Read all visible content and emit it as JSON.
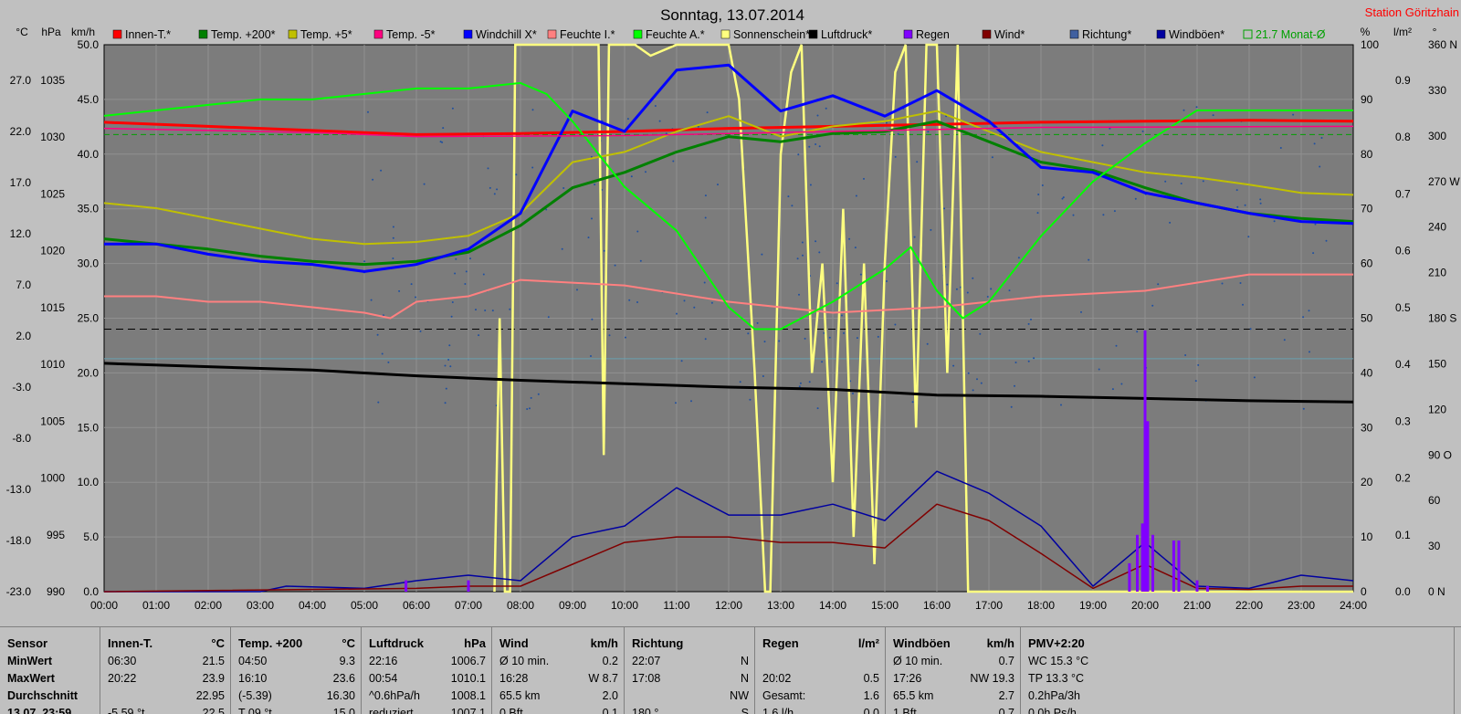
{
  "title": "Sonntag, 13.07.2014",
  "station": "Station Göritzhain",
  "axis_units": {
    "celsius": "°C",
    "hpa": "hPa",
    "kmh": "km/h",
    "percent": "%",
    "lm2": "l/m²",
    "degree": "°"
  },
  "legend": [
    {
      "label": "Innen-T.*",
      "color": "#ff0000"
    },
    {
      "label": "Temp. +200*",
      "color": "#008000"
    },
    {
      "label": "Temp. +5*",
      "color": "#c0c000"
    },
    {
      "label": "Temp. -5*",
      "color": "#ff0080"
    },
    {
      "label": "Windchill X*",
      "color": "#0000ff"
    },
    {
      "label": "Feuchte I.*",
      "color": "#ff8080"
    },
    {
      "label": "Feuchte A.*",
      "color": "#00ff00"
    },
    {
      "label": "Sonnenschein*",
      "color": "#ffff80"
    },
    {
      "label": "Luftdruck*",
      "color": "#000000"
    },
    {
      "label": "Regen",
      "color": "#8000ff"
    },
    {
      "label": "Wind*",
      "color": "#800000"
    },
    {
      "label": "Richtung*",
      "color": "#4060a0"
    },
    {
      "label": "Windböen*",
      "color": "#0000a0"
    },
    {
      "label": "21.7 Monat-Ø",
      "color": "#00a000"
    }
  ],
  "chart_data": {
    "type": "line",
    "x_ticks": [
      "00:00",
      "01:00",
      "02:00",
      "03:00",
      "04:00",
      "05:00",
      "06:00",
      "07:00",
      "08:00",
      "09:00",
      "10:00",
      "11:00",
      "12:00",
      "13:00",
      "14:00",
      "15:00",
      "16:00",
      "17:00",
      "18:00",
      "19:00",
      "20:00",
      "21:00",
      "22:00",
      "23:00",
      "24:00"
    ],
    "axis_celsius": [
      "27.0",
      "22.0",
      "17.0",
      "12.0",
      "7.0",
      "2.0",
      "-3.0",
      "-8.0",
      "-13.0",
      "-18.0",
      "-23.0"
    ],
    "axis_hpa": [
      "1035",
      "1030",
      "1025",
      "1020",
      "1015",
      "1010",
      "1005",
      "1000",
      "995",
      "990"
    ],
    "axis_kmh": [
      "50.0",
      "45.0",
      "40.0",
      "35.0",
      "30.0",
      "25.0",
      "20.0",
      "15.0",
      "10.0",
      "5.0",
      "0.0"
    ],
    "axis_percent": [
      "100",
      "90",
      "80",
      "70",
      "60",
      "50",
      "40",
      "30",
      "20",
      "10",
      "0"
    ],
    "axis_lm2": [
      "0.9",
      "0.8",
      "0.7",
      "0.6",
      "0.5",
      "0.4",
      "0.3",
      "0.2",
      "0.1",
      "0.0"
    ],
    "axis_degree": [
      "360 N",
      "330",
      "300",
      "270 W",
      "240",
      "210",
      "180 S",
      "150",
      "120",
      "90 O",
      "60",
      "30",
      "0 N"
    ],
    "grid": true,
    "series": [
      {
        "name": "Innen-T.*",
        "axis": "celsius",
        "x": [
          0,
          2,
          4,
          6,
          8,
          10,
          12,
          14,
          16,
          18,
          20,
          22,
          24
        ],
        "values": [
          22.9,
          22.5,
          22.1,
          21.7,
          21.8,
          22.0,
          22.3,
          22.5,
          22.7,
          22.9,
          23.0,
          23.1,
          23.0
        ]
      },
      {
        "name": "Temp. +200*",
        "axis": "celsius",
        "x": [
          0,
          1,
          2,
          3,
          4,
          5,
          6,
          7,
          8,
          9,
          10,
          11,
          12,
          13,
          14,
          15,
          16,
          17,
          18,
          19,
          20,
          21,
          22,
          23,
          24
        ],
        "values": [
          11.5,
          11.0,
          10.5,
          9.8,
          9.3,
          9.0,
          9.3,
          10.2,
          12.8,
          16.5,
          18.0,
          20.0,
          21.5,
          21.0,
          21.8,
          22.0,
          23.0,
          21.0,
          19.0,
          18.2,
          16.5,
          15.0,
          14.0,
          13.5,
          13.2
        ]
      },
      {
        "name": "Temp. +5*",
        "axis": "celsius",
        "x": [
          0,
          1,
          2,
          3,
          4,
          5,
          6,
          7,
          8,
          9,
          10,
          11,
          12,
          13,
          14,
          15,
          16,
          17,
          18,
          19,
          20,
          21,
          22,
          23,
          24
        ],
        "values": [
          15.0,
          14.5,
          13.5,
          12.5,
          11.5,
          11.0,
          11.2,
          11.8,
          14.0,
          19.0,
          20.0,
          22.0,
          23.5,
          21.5,
          22.5,
          23.0,
          24.0,
          22.0,
          20.0,
          19.0,
          18.0,
          17.5,
          16.8,
          16.0,
          15.8
        ]
      },
      {
        "name": "Windchill X*",
        "axis": "celsius",
        "x": [
          0,
          1,
          2,
          3,
          4,
          5,
          6,
          7,
          8,
          9,
          10,
          11,
          12,
          13,
          14,
          15,
          16,
          17,
          18,
          19,
          20,
          21,
          22,
          23,
          24
        ],
        "values": [
          11.0,
          11.0,
          10.0,
          9.3,
          9.0,
          8.3,
          9.0,
          10.5,
          14.0,
          24.0,
          22.0,
          28.0,
          28.5,
          24.0,
          25.5,
          23.5,
          26.0,
          23.0,
          18.5,
          18.0,
          16.0,
          15.0,
          14.0,
          13.2,
          13.0
        ]
      },
      {
        "name": "Luftdruck*",
        "axis": "hpa",
        "x": [
          0,
          2,
          4,
          6,
          8,
          10,
          12,
          14,
          16,
          18,
          20,
          22,
          24
        ],
        "values": [
          1010.1,
          1009.8,
          1009.5,
          1009.0,
          1008.6,
          1008.3,
          1008.0,
          1007.8,
          1007.3,
          1007.2,
          1007.0,
          1006.8,
          1006.7
        ]
      },
      {
        "name": "Feuchte I.*",
        "axis": "percent",
        "x": [
          0,
          1,
          2,
          3,
          4,
          5,
          5.5,
          6,
          7,
          8,
          10,
          12,
          14,
          16,
          18,
          20,
          22,
          24
        ],
        "values": [
          54,
          54,
          53,
          53,
          52,
          51,
          50,
          53,
          54,
          57,
          56,
          53,
          51,
          52,
          54,
          55,
          58,
          58
        ]
      },
      {
        "name": "Feuchte A.*",
        "axis": "percent",
        "x": [
          0,
          1,
          2,
          3,
          4,
          5,
          6,
          7,
          8,
          8.5,
          9,
          10,
          11,
          12,
          12.5,
          13,
          14,
          15,
          15.5,
          16,
          16.5,
          17,
          18,
          19,
          20,
          21,
          22,
          23,
          24
        ],
        "values": [
          87,
          88,
          89,
          90,
          90,
          91,
          92,
          92,
          93,
          91,
          86,
          74,
          66,
          52,
          48,
          48,
          53,
          59,
          63,
          55,
          50,
          53,
          65,
          75,
          82,
          88,
          88,
          88,
          88
        ]
      },
      {
        "name": "Windböen*",
        "axis": "kmh",
        "x": [
          0,
          3,
          3.5,
          5,
          6,
          7,
          8,
          9,
          10,
          11,
          12,
          13,
          14,
          15,
          16,
          17,
          18,
          19,
          20,
          21,
          22,
          23,
          24
        ],
        "values": [
          0,
          0,
          0.5,
          0.3,
          1.0,
          1.5,
          1.0,
          5.0,
          6.0,
          9.5,
          7.0,
          7.0,
          8.0,
          6.5,
          11.0,
          9.0,
          6.0,
          0.5,
          4.5,
          0.5,
          0.3,
          1.5,
          1.0
        ]
      },
      {
        "name": "Wind*",
        "axis": "kmh",
        "x": [
          0,
          6,
          7,
          8,
          9,
          10,
          11,
          12,
          13,
          14,
          15,
          16,
          17,
          18,
          19,
          20,
          21,
          22,
          23,
          24
        ],
        "values": [
          0,
          0.3,
          0.5,
          0.5,
          2.5,
          4.5,
          5.0,
          5.0,
          4.5,
          4.5,
          4.0,
          8.0,
          6.5,
          3.5,
          0.3,
          2.5,
          0.3,
          0.2,
          0.5,
          0.5
        ]
      }
    ],
    "monthly_avg_celsius": 21.7
  },
  "panel": {
    "columns": [
      {
        "title": "Sensor",
        "unit": "",
        "rows": [
          [
            "MinWert",
            ""
          ],
          [
            "MaxWert",
            ""
          ],
          [
            "Durchschnitt",
            ""
          ],
          [
            "13.07. 23:59",
            ""
          ]
        ]
      },
      {
        "title": "Innen-T.",
        "unit": "°C",
        "rows": [
          [
            "06:30",
            "21.5"
          ],
          [
            "20:22",
            "23.9"
          ],
          [
            "",
            "22.95"
          ],
          [
            "-5.59 °t",
            "22.5"
          ]
        ]
      },
      {
        "title": "Temp. +200",
        "unit": "°C",
        "rows": [
          [
            "04:50",
            "9.3"
          ],
          [
            "16:10",
            "23.6"
          ],
          [
            "(-5.39)",
            "16.30"
          ],
          [
            "T 09 °t",
            "15.0"
          ]
        ]
      },
      {
        "title": "Luftdruck",
        "unit": "hPa",
        "rows": [
          [
            "22:16",
            "1006.7"
          ],
          [
            "00:54",
            "1010.1"
          ],
          [
            "^0.6hPa/h",
            "1008.1"
          ],
          [
            "reduziert",
            "1007.1"
          ]
        ]
      },
      {
        "title": "Wind",
        "unit": "km/h",
        "rows": [
          [
            "Ø 10 min.",
            "0.2"
          ],
          [
            "16:28",
            "W 8.7"
          ],
          [
            "65.5 km",
            "2.0"
          ],
          [
            "0 Bft",
            "0.1"
          ]
        ]
      },
      {
        "title": "Richtung",
        "unit": "",
        "rows": [
          [
            "22:07",
            "N"
          ],
          [
            "17:08",
            "N"
          ],
          [
            "",
            "NW"
          ],
          [
            "180 °",
            "S"
          ]
        ]
      },
      {
        "title": "Regen",
        "unit": "l/m²",
        "rows": [
          [
            "",
            ""
          ],
          [
            "20:02",
            "0.5"
          ],
          [
            "Gesamt:",
            "1.6"
          ],
          [
            "1.6 l/h",
            "0.0"
          ]
        ]
      },
      {
        "title": "Windböen",
        "unit": "km/h",
        "rows": [
          [
            "Ø 10 min.",
            "0.7"
          ],
          [
            "17:26",
            "NW 19.3"
          ],
          [
            "65.5 km",
            "2.7"
          ],
          [
            "1 Bft",
            "0.7"
          ]
        ]
      },
      {
        "title": "PMV+2:20",
        "unit": "",
        "rows": [
          [
            "WC 15.3 °C",
            ""
          ],
          [
            "TP 13.3 °C",
            ""
          ],
          [
            "0.2hPa/3h",
            ""
          ],
          [
            "0.0h Ps/h",
            ""
          ]
        ]
      }
    ]
  }
}
